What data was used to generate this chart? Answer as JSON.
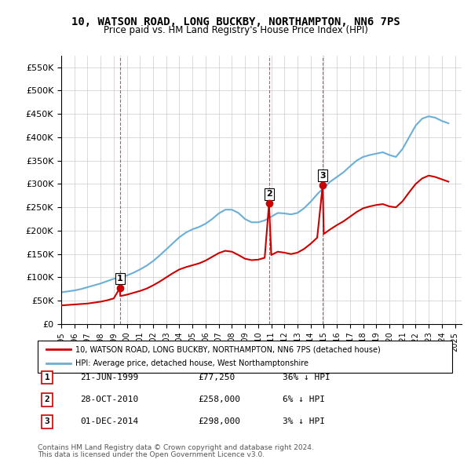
{
  "title": "10, WATSON ROAD, LONG BUCKBY, NORTHAMPTON, NN6 7PS",
  "subtitle": "Price paid vs. HM Land Registry's House Price Index (HPI)",
  "ylabel_ticks": [
    "£0",
    "£50K",
    "£100K",
    "£150K",
    "£200K",
    "£250K",
    "£300K",
    "£350K",
    "£400K",
    "£450K",
    "£500K",
    "£550K"
  ],
  "ytick_values": [
    0,
    50000,
    100000,
    150000,
    200000,
    250000,
    300000,
    350000,
    400000,
    450000,
    500000,
    550000
  ],
  "ylim": [
    0,
    575000
  ],
  "sale_dates_num": [
    1999.47,
    2010.83,
    2014.92
  ],
  "sale_prices": [
    77250,
    258000,
    298000
  ],
  "sale_labels": [
    "1",
    "2",
    "3"
  ],
  "legend_red": "10, WATSON ROAD, LONG BUCKBY, NORTHAMPTON, NN6 7PS (detached house)",
  "legend_blue": "HPI: Average price, detached house, West Northamptonshire",
  "table_rows": [
    {
      "num": "1",
      "date": "21-JUN-1999",
      "price": "£77,250",
      "hpi": "36% ↓ HPI"
    },
    {
      "num": "2",
      "date": "28-OCT-2010",
      "price": "£258,000",
      "hpi": "6% ↓ HPI"
    },
    {
      "num": "3",
      "date": "01-DEC-2014",
      "price": "£298,000",
      "hpi": "3% ↓ HPI"
    }
  ],
  "footnote1": "Contains HM Land Registry data © Crown copyright and database right 2024.",
  "footnote2": "This data is licensed under the Open Government Licence v3.0.",
  "hpi_color": "#6baed6",
  "price_color": "#cc0000",
  "vline_color": "#cc0000",
  "bg_color": "#ffffff",
  "grid_color": "#cccccc",
  "hpi_x": [
    1995.0,
    1995.5,
    1996.0,
    1996.5,
    1997.0,
    1997.5,
    1998.0,
    1998.5,
    1999.0,
    1999.5,
    2000.0,
    2000.5,
    2001.0,
    2001.5,
    2002.0,
    2002.5,
    2003.0,
    2003.5,
    2004.0,
    2004.5,
    2005.0,
    2005.5,
    2006.0,
    2006.5,
    2007.0,
    2007.5,
    2008.0,
    2008.5,
    2009.0,
    2009.5,
    2010.0,
    2010.5,
    2011.0,
    2011.5,
    2012.0,
    2012.5,
    2013.0,
    2013.5,
    2014.0,
    2014.5,
    2015.0,
    2015.5,
    2016.0,
    2016.5,
    2017.0,
    2017.5,
    2018.0,
    2018.5,
    2019.0,
    2019.5,
    2020.0,
    2020.5,
    2021.0,
    2021.5,
    2022.0,
    2022.5,
    2023.0,
    2023.5,
    2024.0,
    2024.5
  ],
  "hpi_y": [
    68000,
    70000,
    72000,
    75000,
    79000,
    83000,
    87000,
    92000,
    97000,
    100000,
    104000,
    110000,
    117000,
    125000,
    135000,
    147000,
    160000,
    173000,
    186000,
    196000,
    203000,
    208000,
    215000,
    225000,
    237000,
    245000,
    245000,
    238000,
    225000,
    218000,
    218000,
    222000,
    230000,
    238000,
    237000,
    235000,
    238000,
    248000,
    262000,
    278000,
    292000,
    305000,
    315000,
    325000,
    338000,
    350000,
    358000,
    362000,
    365000,
    368000,
    362000,
    358000,
    375000,
    400000,
    425000,
    440000,
    445000,
    442000,
    435000,
    430000
  ],
  "price_x": [
    1995.0,
    1995.5,
    1996.0,
    1996.5,
    1997.0,
    1997.5,
    1998.0,
    1998.5,
    1999.0,
    1999.47,
    1999.5,
    2000.0,
    2000.5,
    2001.0,
    2001.5,
    2002.0,
    2002.5,
    2003.0,
    2003.5,
    2004.0,
    2004.5,
    2005.0,
    2005.5,
    2006.0,
    2006.5,
    2007.0,
    2007.5,
    2008.0,
    2008.5,
    2009.0,
    2009.5,
    2010.0,
    2010.5,
    2010.83,
    2011.0,
    2011.5,
    2012.0,
    2012.5,
    2013.0,
    2013.5,
    2014.0,
    2014.5,
    2014.92,
    2015.0,
    2015.5,
    2016.0,
    2016.5,
    2017.0,
    2017.5,
    2018.0,
    2018.5,
    2019.0,
    2019.5,
    2020.0,
    2020.5,
    2021.0,
    2021.5,
    2022.0,
    2022.5,
    2023.0,
    2023.5,
    2024.0,
    2024.5
  ],
  "price_y": [
    40000,
    41000,
    42000,
    43000,
    44000,
    46000,
    48000,
    51000,
    55000,
    77250,
    60000,
    63000,
    67000,
    71000,
    76000,
    83000,
    91000,
    100000,
    109000,
    117000,
    122000,
    126000,
    130000,
    136000,
    144000,
    152000,
    157000,
    155000,
    148000,
    140000,
    137000,
    138000,
    142000,
    258000,
    148000,
    155000,
    153000,
    150000,
    153000,
    161000,
    172000,
    185000,
    298000,
    193000,
    203000,
    212000,
    220000,
    230000,
    240000,
    248000,
    252000,
    255000,
    257000,
    252000,
    250000,
    263000,
    282000,
    300000,
    312000,
    318000,
    315000,
    310000,
    305000
  ]
}
